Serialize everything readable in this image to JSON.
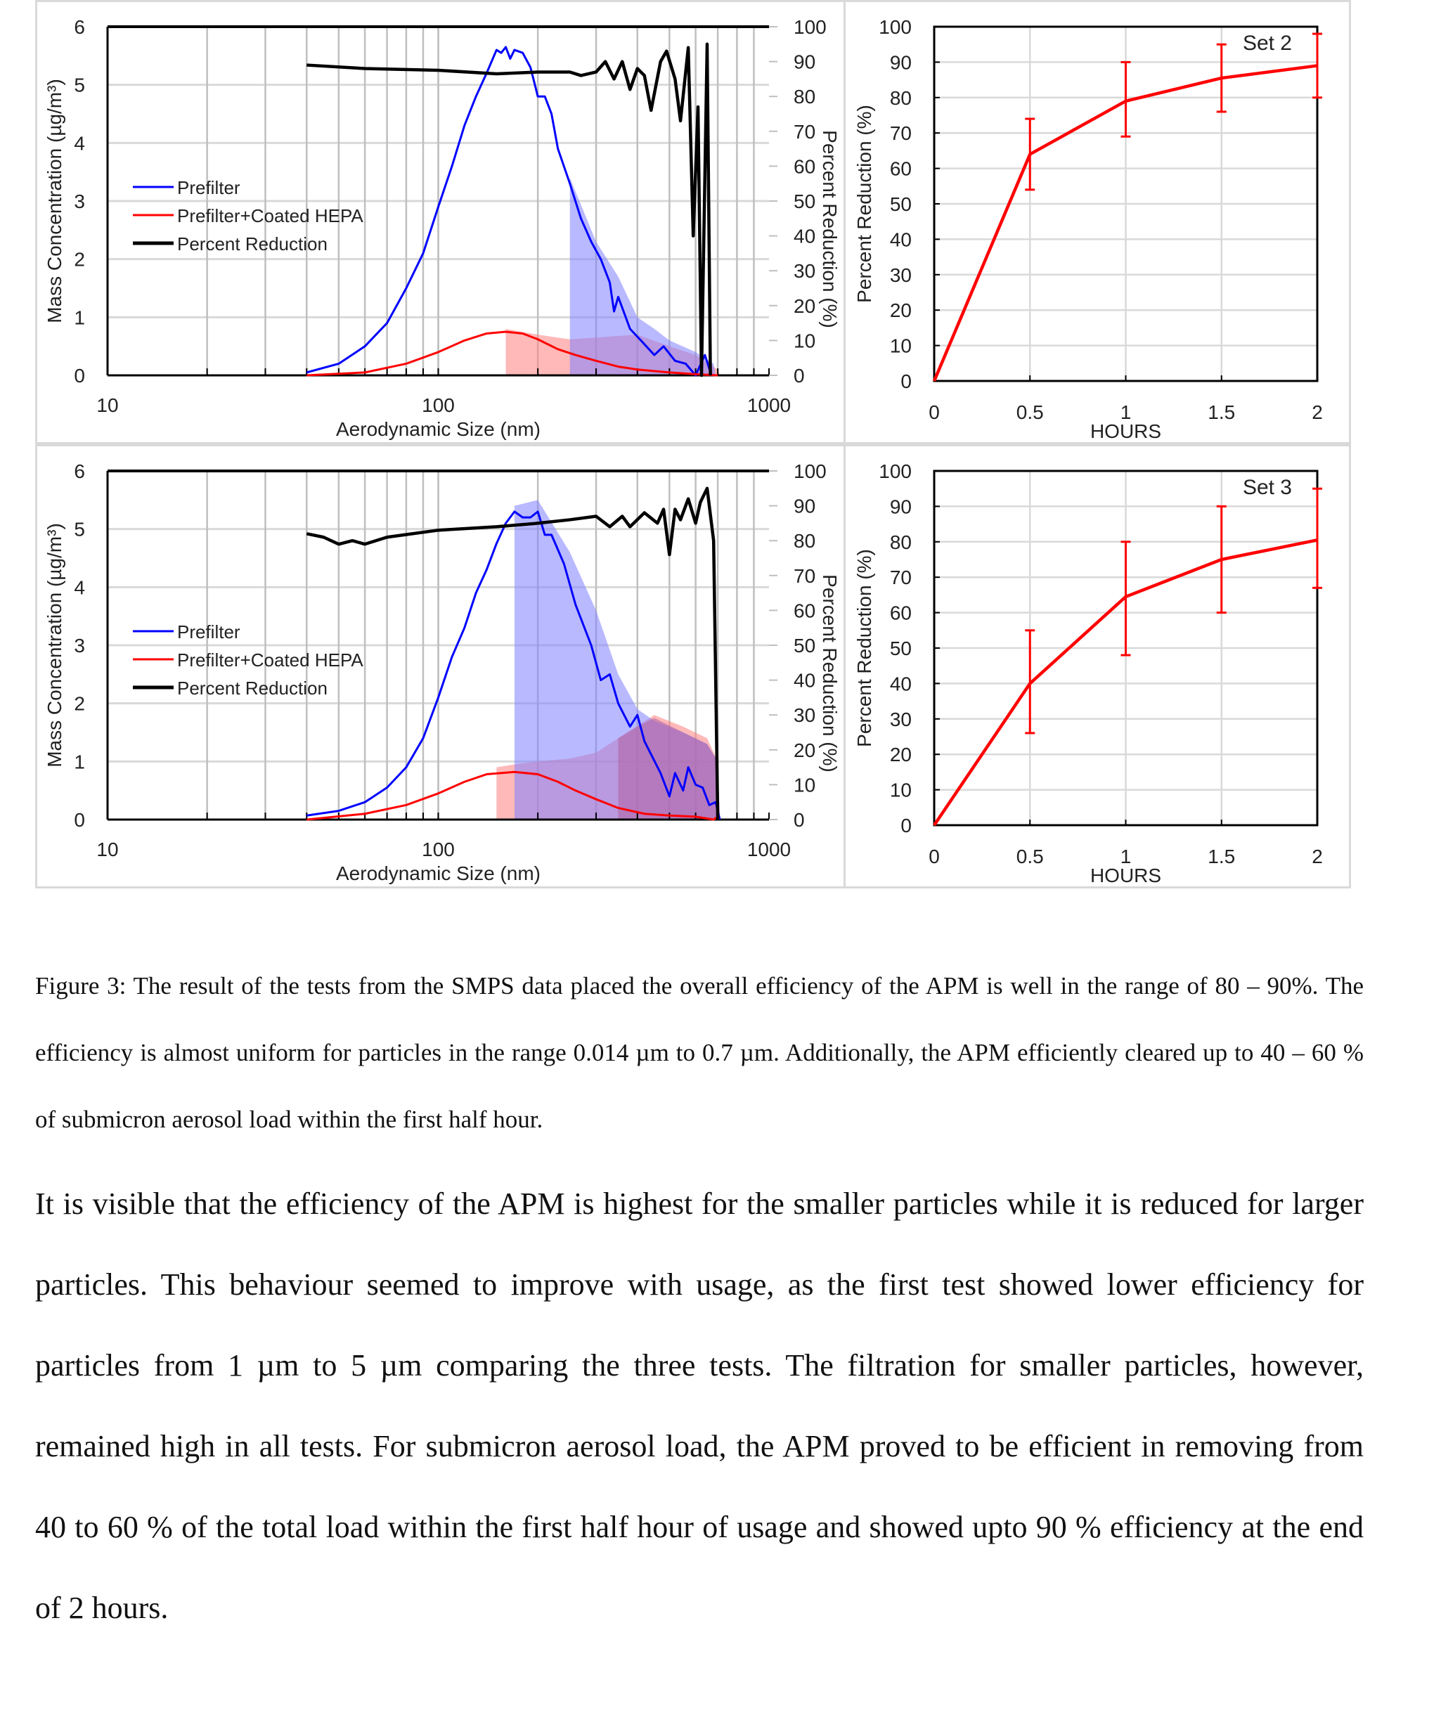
{
  "chart_data": [
    {
      "id": "size-dist-1",
      "type": "line",
      "xscale": "log",
      "xlim": [
        10,
        1000
      ],
      "ylim": [
        0,
        6
      ],
      "y2lim": [
        0,
        100
      ],
      "xticks": [
        "10",
        "100",
        "1000"
      ],
      "yticks": [
        "0",
        "1",
        "2",
        "3",
        "4",
        "5",
        "6"
      ],
      "y2ticks": [
        "0",
        "10",
        "20",
        "30",
        "40",
        "50",
        "60",
        "70",
        "80",
        "90",
        "100"
      ],
      "xlabel": "Aerodynamic Size (nm)",
      "ylabel": "Mass Concentration (µg/m³)",
      "y2label": "Percent Reduction (%)",
      "legend_position": "left-middle",
      "series": [
        {
          "name": "Prefilter",
          "color": "#0000ff",
          "axis": "left",
          "x": [
            40,
            50,
            60,
            70,
            80,
            90,
            100,
            110,
            120,
            130,
            140,
            150,
            155,
            160,
            165,
            170,
            180,
            190,
            200,
            210,
            220,
            230,
            250,
            270,
            290,
            310,
            330,
            340,
            350,
            380,
            410,
            450,
            480,
            520,
            560,
            600,
            640,
            670
          ],
          "y": [
            0.05,
            0.2,
            0.5,
            0.9,
            1.5,
            2.1,
            2.9,
            3.6,
            4.3,
            4.8,
            5.2,
            5.6,
            5.55,
            5.65,
            5.45,
            5.6,
            5.55,
            5.3,
            4.8,
            4.8,
            4.5,
            3.9,
            3.3,
            2.7,
            2.3,
            2.0,
            1.6,
            1.1,
            1.35,
            0.8,
            0.6,
            0.35,
            0.5,
            0.25,
            0.2,
            0.0,
            0.35,
            0.0
          ]
        },
        {
          "name": "Prefilter+Coated HEPA",
          "color": "#ff0000",
          "axis": "left",
          "x": [
            40,
            60,
            80,
            100,
            120,
            140,
            160,
            180,
            200,
            230,
            260,
            300,
            350,
            400,
            500,
            600,
            700
          ],
          "y": [
            0,
            0.05,
            0.2,
            0.4,
            0.6,
            0.72,
            0.75,
            0.72,
            0.62,
            0.45,
            0.35,
            0.25,
            0.15,
            0.1,
            0.05,
            0.02,
            0
          ]
        },
        {
          "name": "Percent Reduction",
          "color": "#000000",
          "axis": "right",
          "x": [
            40,
            60,
            100,
            150,
            200,
            250,
            270,
            300,
            320,
            340,
            360,
            380,
            400,
            420,
            440,
            470,
            490,
            520,
            540,
            570,
            590,
            610,
            625,
            650,
            665
          ],
          "y": [
            89,
            88,
            87.5,
            86.5,
            87,
            87,
            86,
            87,
            90,
            85,
            90,
            82,
            88,
            86,
            76,
            90,
            93,
            85,
            73,
            94,
            40,
            77,
            0,
            95,
            0
          ]
        }
      ],
      "bands": [
        {
          "color": "#ff8080",
          "x": [
            160,
            200,
            250,
            300,
            400,
            500,
            600,
            700,
            710
          ],
          "y": [
            0.8,
            0.7,
            0.62,
            0.65,
            0.7,
            0.5,
            0.35,
            0.1,
            0
          ]
        },
        {
          "color": "#8080ff",
          "x": [
            250,
            300,
            350,
            400,
            450,
            500,
            600,
            680,
            690
          ],
          "y": [
            3.4,
            2.3,
            1.7,
            1.0,
            0.8,
            0.6,
            0.4,
            0.2,
            0
          ]
        }
      ]
    },
    {
      "id": "reduction-set-2",
      "type": "line",
      "xlim": [
        0,
        2
      ],
      "ylim": [
        0,
        100
      ],
      "xticks": [
        "0",
        "0.5",
        "1",
        "1.5",
        "2"
      ],
      "yticks": [
        "0",
        "10",
        "20",
        "30",
        "40",
        "50",
        "60",
        "70",
        "80",
        "90",
        "100"
      ],
      "xlabel": "HOURS",
      "ylabel": "Percent Reduction (%)",
      "annotation": "Set 2",
      "series": [
        {
          "name": "Set 2",
          "color": "#ff0000",
          "x": [
            0,
            0.5,
            1,
            1.5,
            2
          ],
          "y": [
            0,
            64,
            79,
            85.5,
            89
          ],
          "err_low": [
            0,
            54,
            69,
            76,
            80
          ],
          "err_high": [
            0,
            74,
            90,
            95,
            98
          ]
        }
      ]
    },
    {
      "id": "size-dist-2",
      "type": "line",
      "xscale": "log",
      "xlim": [
        10,
        1000
      ],
      "ylim": [
        0,
        6
      ],
      "y2lim": [
        0,
        100
      ],
      "xticks": [
        "10",
        "100",
        "1000"
      ],
      "yticks": [
        "0",
        "1",
        "2",
        "3",
        "4",
        "5",
        "6"
      ],
      "y2ticks": [
        "0",
        "10",
        "20",
        "30",
        "40",
        "50",
        "60",
        "70",
        "80",
        "90",
        "100"
      ],
      "xlabel": "Aerodynamic Size (nm)",
      "ylabel": "Mass Concentration (µg/m³)",
      "y2label": "Percent Reduction (%)",
      "legend_position": "left-middle",
      "series": [
        {
          "name": "Prefilter",
          "color": "#0000ff",
          "axis": "left",
          "x": [
            40,
            50,
            60,
            70,
            80,
            90,
            100,
            110,
            120,
            130,
            140,
            150,
            160,
            170,
            180,
            190,
            200,
            210,
            220,
            240,
            260,
            290,
            310,
            330,
            350,
            380,
            400,
            420,
            470,
            500,
            520,
            550,
            570,
            600,
            630,
            660,
            690,
            710
          ],
          "y": [
            0.07,
            0.15,
            0.3,
            0.55,
            0.9,
            1.4,
            2.1,
            2.8,
            3.3,
            3.9,
            4.3,
            4.75,
            5.1,
            5.3,
            5.2,
            5.2,
            5.3,
            4.9,
            4.9,
            4.4,
            3.7,
            3.0,
            2.4,
            2.5,
            2.0,
            1.6,
            1.8,
            1.35,
            0.8,
            0.4,
            0.8,
            0.5,
            0.9,
            0.6,
            0.55,
            0.25,
            0.3,
            0
          ]
        },
        {
          "name": "Prefilter+Coated HEPA",
          "color": "#ff0000",
          "axis": "left",
          "x": [
            40,
            60,
            80,
            100,
            120,
            140,
            170,
            200,
            230,
            260,
            300,
            350,
            420,
            500,
            600,
            680,
            700
          ],
          "y": [
            0,
            0.1,
            0.25,
            0.45,
            0.65,
            0.78,
            0.82,
            0.78,
            0.65,
            0.5,
            0.35,
            0.2,
            0.1,
            0.07,
            0.05,
            0,
            0.05
          ]
        },
        {
          "name": "Percent Reduction",
          "color": "#000000",
          "axis": "right",
          "x": [
            40,
            45,
            50,
            55,
            60,
            70,
            100,
            150,
            200,
            250,
            300,
            330,
            360,
            380,
            420,
            460,
            480,
            500,
            520,
            540,
            570,
            600,
            620,
            650,
            680,
            700
          ],
          "y": [
            82,
            81,
            79,
            80,
            79,
            81,
            83,
            84,
            85,
            86,
            87,
            84,
            87,
            84,
            88,
            85,
            89,
            76,
            89,
            86,
            92,
            85,
            91,
            95,
            80,
            0
          ]
        }
      ],
      "bands": [
        {
          "color": "#ff8080",
          "x": [
            150,
            170,
            200,
            250,
            300,
            350,
            450,
            550,
            650,
            700,
            710
          ],
          "y": [
            0.9,
            0.95,
            1.0,
            1.05,
            1.15,
            1.4,
            1.8,
            1.6,
            1.4,
            1.0,
            0
          ]
        },
        {
          "color": "#8080ff",
          "x": [
            170,
            200,
            250,
            300,
            350,
            400,
            450,
            550,
            650,
            700,
            710
          ],
          "y": [
            5.4,
            5.5,
            4.6,
            3.6,
            2.5,
            1.9,
            1.7,
            1.5,
            1.3,
            1.0,
            0
          ]
        },
        {
          "color": "#b060a0",
          "x": [
            350,
            400,
            450,
            550,
            650,
            700,
            710
          ],
          "y": [
            1.4,
            1.6,
            1.75,
            1.5,
            1.3,
            1.0,
            0
          ]
        }
      ]
    },
    {
      "id": "reduction-set-3",
      "type": "line",
      "xlim": [
        0,
        2
      ],
      "ylim": [
        0,
        100
      ],
      "xticks": [
        "0",
        "0.5",
        "1",
        "1.5",
        "2"
      ],
      "yticks": [
        "0",
        "10",
        "20",
        "30",
        "40",
        "50",
        "60",
        "70",
        "80",
        "90",
        "100"
      ],
      "xlabel": "HOURS",
      "ylabel": "Percent Reduction (%)",
      "annotation": "Set 3",
      "series": [
        {
          "name": "Set 3",
          "color": "#ff0000",
          "x": [
            0,
            0.5,
            1,
            1.5,
            2
          ],
          "y": [
            0,
            40,
            64.5,
            75,
            80.5
          ],
          "err_low": [
            0,
            26,
            48,
            60,
            67
          ],
          "err_high": [
            0,
            55,
            80,
            90,
            95
          ]
        }
      ]
    }
  ],
  "caption": "Figure 3: The result of the tests from the SMPS data placed the overall efficiency of the APM is well in the range of 80 – 90%. The efficiency is almost uniform for particles in the range 0.014 µm to 0.7 µm. Additionally, the APM efficiently cleared up to 40 – 60 % of submicron aerosol load within the first half hour.",
  "body": "It is visible that the efficiency of the APM is highest for the smaller particles while it is reduced for larger particles. This behaviour seemed to improve with usage, as the first test showed lower efficiency for particles from 1 µm to 5 µm comparing the three tests. The filtration for smaller particles, however, remained high in all tests. For submicron aerosol load, the APM proved to be efficient in removing from 40 to 60 % of the total load within the first half hour of usage and showed upto 90 % efficiency at the end of 2 hours."
}
